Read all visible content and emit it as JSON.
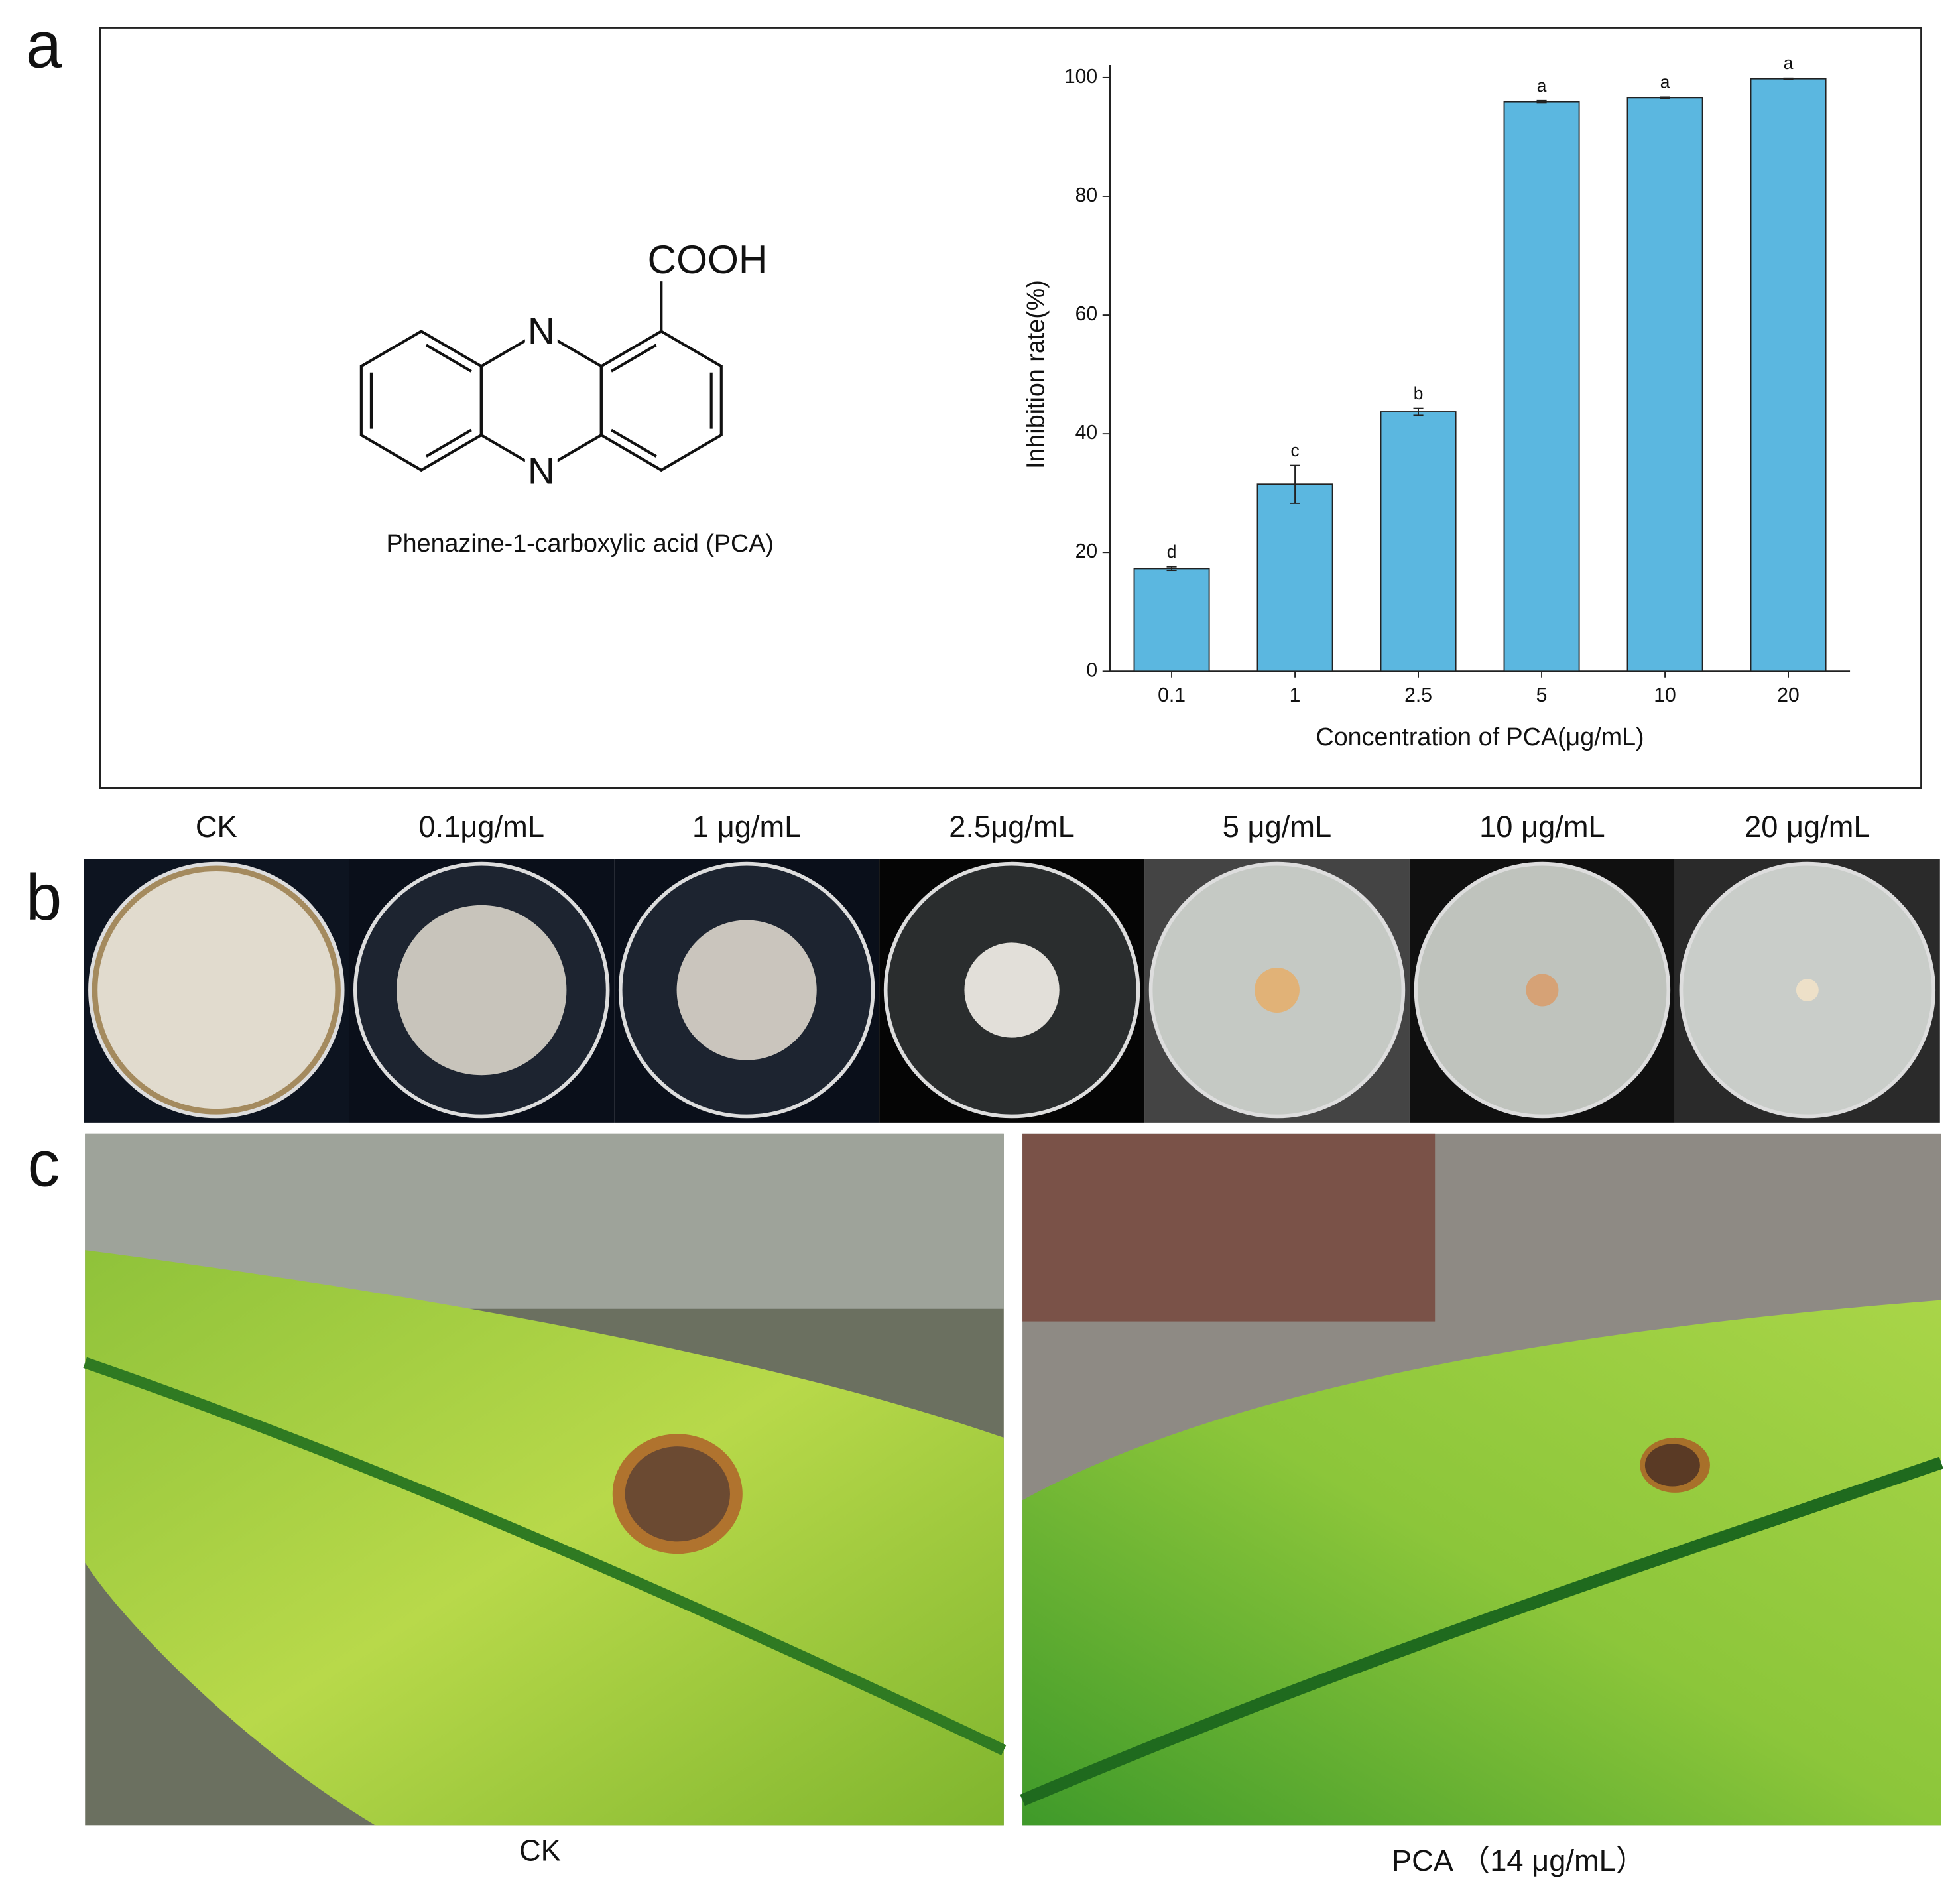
{
  "panel_labels": [
    "a",
    "b",
    "c"
  ],
  "structure": {
    "substituent": "COOH",
    "atom_top": "N",
    "atom_bottom": "N",
    "name": "Phenazine-1-carboxylic acid (PCA)"
  },
  "chart_data": {
    "type": "bar",
    "categories": [
      "0.1",
      "1",
      "2.5",
      "5",
      "10",
      "20"
    ],
    "values": [
      17.3,
      31.5,
      43.7,
      95.9,
      96.6,
      99.8
    ],
    "errors": [
      0.3,
      3.2,
      0.6,
      0.2,
      0.1,
      0.1
    ],
    "annotations": [
      "d",
      "c",
      "b",
      "a",
      "a",
      "a"
    ],
    "color": "#5bb7e0",
    "ylim": [
      0,
      100
    ],
    "yticks": [
      0,
      20,
      40,
      60,
      80,
      100
    ],
    "y_label": "Inhibition rate(%)",
    "x_label": "Concentration of PCA(μg/mL)"
  },
  "plates": {
    "labels": [
      "CK",
      "0.1μg/mL",
      "1 μg/mL",
      "2.5μg/mL",
      "5 μg/mL",
      "10 μg/mL",
      "20 μg/mL"
    ]
  },
  "leaves": {
    "labels": [
      "CK",
      "PCA （14 μg/mL）"
    ]
  }
}
